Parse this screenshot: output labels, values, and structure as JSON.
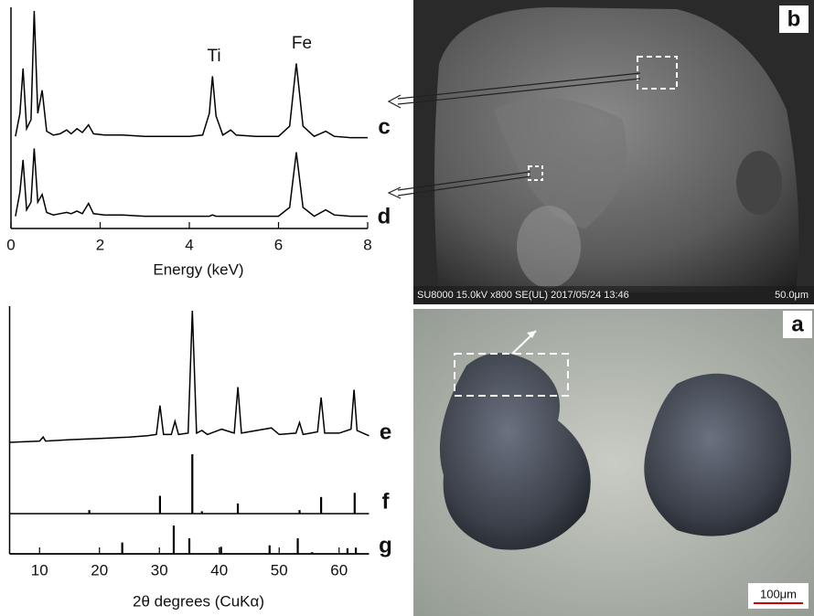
{
  "chart_data": [
    {
      "type": "line",
      "xlabel": "Energy (keV)",
      "xlim": [
        0,
        8
      ],
      "xticks": [
        0,
        2,
        4,
        6,
        8
      ],
      "x": [
        0.1,
        0.2,
        0.27,
        0.35,
        0.45,
        0.52,
        0.6,
        0.7,
        0.8,
        0.95,
        1.1,
        1.25,
        1.35,
        1.48,
        1.6,
        1.74,
        1.85,
        2.1,
        2.5,
        3,
        3.5,
        4,
        4.3,
        4.45,
        4.52,
        4.6,
        4.75,
        4.93,
        5.05,
        5.5,
        6,
        6.25,
        6.4,
        6.55,
        6.8,
        7.06,
        7.25,
        7.6,
        8
      ],
      "series": [
        {
          "name": "c",
          "color": "#000000",
          "values": [
            2,
            20,
            55,
            8,
            15,
            100,
            20,
            38,
            6,
            3,
            4,
            7,
            4,
            8,
            5,
            11,
            4,
            3,
            3,
            2,
            2,
            2,
            3,
            20,
            49,
            18,
            3,
            7,
            3,
            2,
            2,
            10,
            59,
            10,
            2,
            6,
            2,
            1,
            1
          ]
        },
        {
          "name": "d",
          "color": "#000000",
          "values": [
            1,
            20,
            45,
            6,
            12,
            54,
            12,
            18,
            4,
            2,
            3,
            4,
            3,
            5,
            3,
            11,
            3,
            2,
            2,
            1,
            1,
            1,
            1,
            1,
            2,
            1,
            1,
            1,
            1,
            1,
            1,
            8,
            51,
            8,
            1,
            6,
            2,
            1,
            1
          ]
        }
      ],
      "annotations": [
        "Ti",
        "Fe"
      ]
    },
    {
      "type": "line",
      "xlabel": "2θ  degrees (CuKα)",
      "xlim": [
        5,
        65
      ],
      "xticks": [
        10,
        20,
        30,
        40,
        50,
        60
      ],
      "series": [
        {
          "name": "e",
          "kind": "line",
          "color": "#000000",
          "x": [
            5,
            10,
            10.6,
            11,
            15,
            20,
            25,
            28,
            29.5,
            30.1,
            30.7,
            32,
            32.6,
            33.2,
            34.8,
            35.5,
            36.2,
            37.1,
            38,
            40.4,
            42.5,
            43.1,
            43.7,
            48.7,
            50,
            52.8,
            53.4,
            54,
            56.4,
            57,
            57.6,
            60,
            62,
            62.5,
            63,
            64,
            65
          ],
          "values": [
            0,
            1,
            4,
            1,
            2,
            3,
            4,
            5,
            6,
            28,
            6,
            6,
            16,
            6,
            7,
            100,
            7,
            9,
            6,
            10,
            7,
            42,
            7,
            11,
            6,
            7,
            15,
            6,
            8,
            34,
            7,
            7,
            10,
            40,
            9,
            7,
            5
          ]
        },
        {
          "name": "f",
          "kind": "stick",
          "color": "#000000",
          "x": [
            18.3,
            30.1,
            35.5,
            37.1,
            43.1,
            53.4,
            57,
            62.6
          ],
          "values": [
            6,
            30,
            100,
            4,
            17,
            6,
            28,
            35
          ]
        },
        {
          "name": "g",
          "kind": "stick",
          "color": "#000000",
          "x": [
            23.8,
            32.4,
            35,
            40.3,
            48.4,
            53.1,
            55.5,
            61.4,
            62.8
          ],
          "values": [
            40,
            100,
            55,
            25,
            30,
            55,
            6,
            20,
            22
          ]
        }
      ]
    }
  ],
  "images": [
    {
      "label": "b",
      "info": "SU8000 15.0kV x800 SE(UL) 2017/05/24 13:46",
      "scale": "50.0μm"
    },
    {
      "label": "a",
      "scale": "100μm"
    }
  ]
}
